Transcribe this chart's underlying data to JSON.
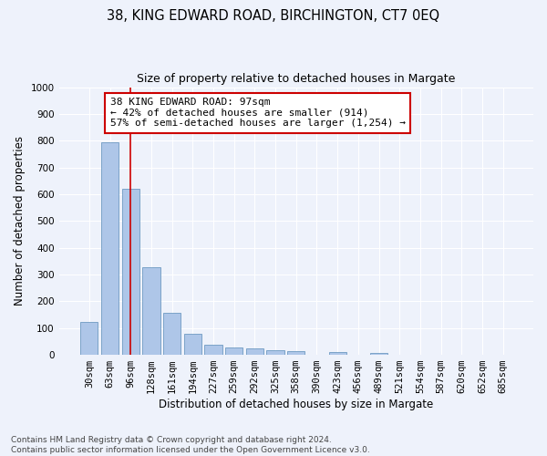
{
  "title1": "38, KING EDWARD ROAD, BIRCHINGTON, CT7 0EQ",
  "title2": "Size of property relative to detached houses in Margate",
  "xlabel": "Distribution of detached houses by size in Margate",
  "ylabel": "Number of detached properties",
  "categories": [
    "30sqm",
    "63sqm",
    "96sqm",
    "128sqm",
    "161sqm",
    "194sqm",
    "227sqm",
    "259sqm",
    "292sqm",
    "325sqm",
    "358sqm",
    "390sqm",
    "423sqm",
    "456sqm",
    "489sqm",
    "521sqm",
    "554sqm",
    "587sqm",
    "620sqm",
    "652sqm",
    "685sqm"
  ],
  "values": [
    122,
    795,
    622,
    328,
    158,
    78,
    37,
    27,
    25,
    18,
    13,
    0,
    10,
    0,
    8,
    0,
    0,
    0,
    0,
    0,
    0
  ],
  "bar_color": "#aec6e8",
  "bar_edge_color": "#5b8db8",
  "vline_x": 2,
  "vline_color": "#cc0000",
  "annotation_text": "38 KING EDWARD ROAD: 97sqm\n← 42% of detached houses are smaller (914)\n57% of semi-detached houses are larger (1,254) →",
  "annotation_box_color": "#ffffff",
  "annotation_box_edge_color": "#cc0000",
  "ylim": [
    0,
    1000
  ],
  "yticks": [
    0,
    100,
    200,
    300,
    400,
    500,
    600,
    700,
    800,
    900,
    1000
  ],
  "background_color": "#eef2fb",
  "grid_color": "#ffffff",
  "footnote": "Contains HM Land Registry data © Crown copyright and database right 2024.\nContains public sector information licensed under the Open Government Licence v3.0.",
  "title1_fontsize": 10.5,
  "title2_fontsize": 9,
  "xlabel_fontsize": 8.5,
  "ylabel_fontsize": 8.5,
  "tick_fontsize": 7.5,
  "annotation_fontsize": 8,
  "footnote_fontsize": 6.5
}
